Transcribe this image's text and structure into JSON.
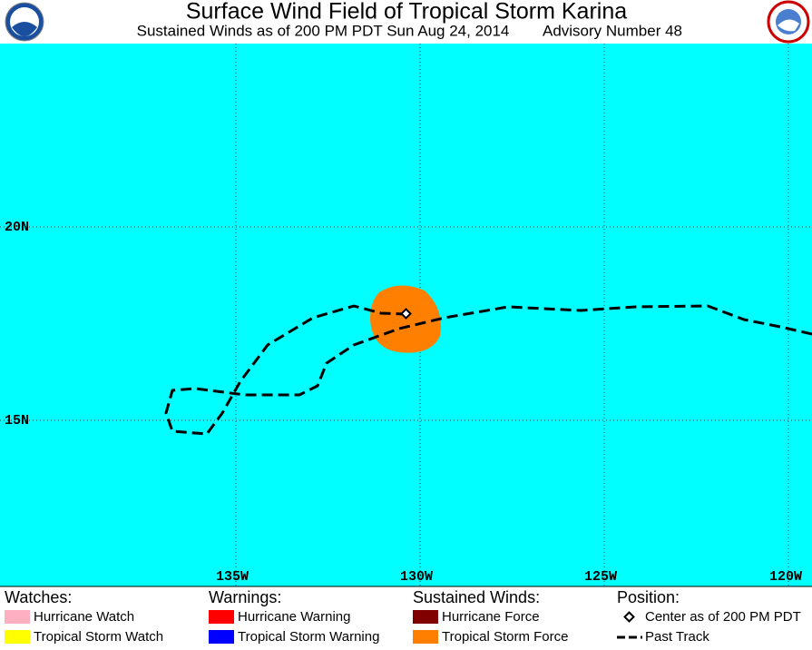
{
  "header": {
    "title": "Surface Wind Field of Tropical Storm Karina",
    "subtitle": "Sustained Winds as of 200 PM PDT Sun Aug 24, 2014",
    "advisory": "Advisory Number 48"
  },
  "map": {
    "lat_labels": [
      "20N",
      "15N"
    ],
    "lon_labels": [
      "135W",
      "130W",
      "125W",
      "120W"
    ]
  },
  "legend": {
    "watches": {
      "title": "Watches:",
      "items": [
        "Hurricane Watch",
        "Tropical Storm Watch"
      ]
    },
    "warnings": {
      "title": "Warnings:",
      "items": [
        "Hurricane Warning",
        "Tropical Storm Warning"
      ]
    },
    "winds": {
      "title": "Sustained Winds:",
      "items": [
        "Hurricane Force",
        "Tropical Storm Force"
      ]
    },
    "position": {
      "title": "Position:",
      "items": [
        "Center as of 200 PM PDT",
        "Past Track"
      ]
    }
  }
}
